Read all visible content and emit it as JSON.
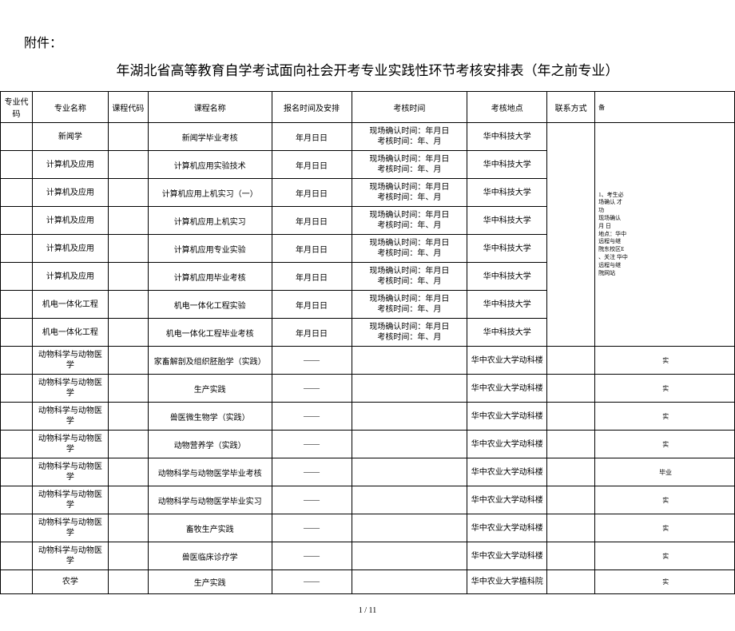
{
  "attachment_label": "附件：",
  "title": "年湖北省高等教育自学考试面向社会开考专业实践性环节考核安排表（年之前专业）",
  "headers": {
    "major_code": "专业代码",
    "major_name": "专业名称",
    "course_code": "课程代码",
    "course_name": "课程名称",
    "reg_time": "报名时间及安排",
    "exam_time": "考核时间",
    "exam_loc": "考核地点",
    "contact": "联系方式",
    "remark": "备"
  },
  "rows": [
    {
      "major_name": "新闻学",
      "course_name": "新闻学毕业考核",
      "reg": "年月日日",
      "time1": "现场确认时间：年月日",
      "time2": "考核时间：年、月",
      "loc": "华中科技大学",
      "remark": ""
    },
    {
      "major_name": "计算机及应用",
      "course_name": "计算机应用实验技术",
      "reg": "年月日日",
      "time1": "现场确认时间：年月日",
      "time2": "考核时间：年、月",
      "loc": "华中科技大学",
      "remark": ""
    },
    {
      "major_name": "计算机及应用",
      "course_name": "计算机应用上机实习（一）",
      "reg": "年月日日",
      "time1": "现场确认时间：年月日",
      "time2": "考核时间：年、月",
      "loc": "华中科技大学",
      "remark": ""
    },
    {
      "major_name": "计算机及应用",
      "course_name": "计算机应用上机实习",
      "reg": "年月日日",
      "time1": "现场确认时间：年月日",
      "time2": "考核时间：年、月",
      "loc": "华中科技大学",
      "remark": ""
    },
    {
      "major_name": "计算机及应用",
      "course_name": "计算机应用专业实验",
      "reg": "年月日日",
      "time1": "现场确认时间：年月日",
      "time2": "考核时间：年、月",
      "loc": "华中科技大学",
      "remark": ""
    },
    {
      "major_name": "计算机及应用",
      "course_name": "计算机应用毕业考核",
      "reg": "年月日日",
      "time1": "现场确认时间：年月日",
      "time2": "考核时间：年、月",
      "loc": "华中科技大学",
      "remark": ""
    },
    {
      "major_name": "机电一体化工程",
      "course_name": "机电一体化工程实验",
      "reg": "年月日日",
      "time1": "现场确认时间：年月日",
      "time2": "考核时间：年、月",
      "loc": "华中科技大学",
      "remark": ""
    },
    {
      "major_name": "机电一体化工程",
      "course_name": "机电一体化工程毕业考核",
      "reg": "年月日日",
      "time1": "现场确认时间：年月日",
      "time2": "考核时间：年、月",
      "loc": "华中科技大学",
      "remark": ""
    },
    {
      "major_name": "动物科学与动物医学",
      "course_name": "家畜解剖及组织胚胎学（实践）",
      "reg": "——",
      "time1": "",
      "time2": "",
      "loc": "华中农业大学动科楼",
      "remark": "实"
    },
    {
      "major_name": "动物科学与动物医学",
      "course_name": "生产实践",
      "reg": "——",
      "time1": "",
      "time2": "",
      "loc": "华中农业大学动科楼",
      "remark": "实"
    },
    {
      "major_name": "动物科学与动物医学",
      "course_name": "兽医微生物学（实践）",
      "reg": "——",
      "time1": "",
      "time2": "",
      "loc": "华中农业大学动科楼",
      "remark": "实"
    },
    {
      "major_name": "动物科学与动物医学",
      "course_name": "动物营养学（实践）",
      "reg": "——",
      "time1": "",
      "time2": "",
      "loc": "华中农业大学动科楼",
      "remark": "实"
    },
    {
      "major_name": "动物科学与动物医学",
      "course_name": "动物科学与动物医学毕业考核",
      "reg": "——",
      "time1": "",
      "time2": "",
      "loc": "华中农业大学动科楼",
      "remark": "毕业"
    },
    {
      "major_name": "动物科学与动物医学",
      "course_name": "动物科学与动物医学毕业实习",
      "reg": "——",
      "time1": "",
      "time2": "",
      "loc": "华中农业大学动科楼",
      "remark": "实"
    },
    {
      "major_name": "动物科学与动物医学",
      "course_name": "畜牧生产实践",
      "reg": "——",
      "time1": "",
      "time2": "",
      "loc": "华中农业大学动科楼",
      "remark": "实"
    },
    {
      "major_name": "动物科学与动物医学",
      "course_name": "兽医临床诊疗学",
      "reg": "——",
      "time1": "",
      "time2": "",
      "loc": "华中农业大学动科楼",
      "remark": "实"
    },
    {
      "major_name": "农学",
      "course_name": "生产实践",
      "reg": "——",
      "time1": "",
      "time2": "",
      "loc": "华中农业大学植科院",
      "remark": "实"
    }
  ],
  "remark_merged": "1、考生必\n场确认 才\n功\n现场确认\n月 日\n地点：华中\n远程与继\n院东校区E\n、关注 华中\n远程与继\n院网站",
  "page_num": "1 / 11"
}
